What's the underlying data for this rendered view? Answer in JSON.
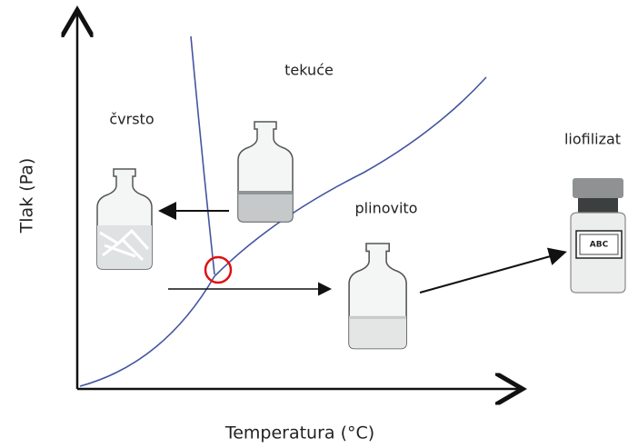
{
  "axes": {
    "y_label": "Tlak (Pa)",
    "x_label": "Temperatura (°C)"
  },
  "regions": {
    "liquid": "tekuće",
    "solid": "čvrsto",
    "gas": "plinovito"
  },
  "product": {
    "label": "liofilizat",
    "vial_label": "ABC"
  }
}
